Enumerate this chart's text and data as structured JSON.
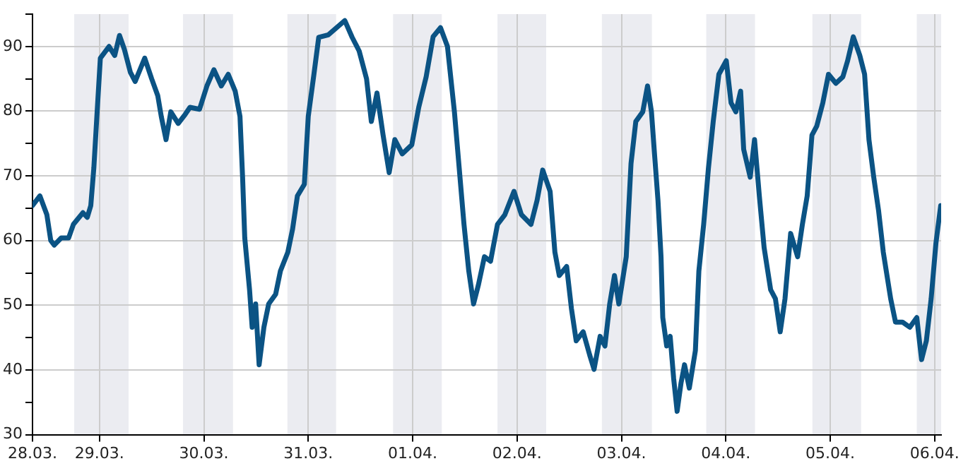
{
  "chart_data": {
    "type": "line",
    "marker": "none",
    "grid": true,
    "color": "#0b5384",
    "x": [
      "--03-28T08:36",
      "--03-28T10:18",
      "--03-28T11:54",
      "--03-28T12:48",
      "--03-28T13:36",
      "--03-28T15:12",
      "--03-28T16:54",
      "--03-28T18:00",
      "--03-28T20:12",
      "--03-28T21:12",
      "--03-28T22:00",
      "--03-28T22:42",
      "--03-28T23:24",
      "--03-29T00:12",
      "--03-29T02:12",
      "--03-29T03:30",
      "--03-29T04:36",
      "--03-29T05:42",
      "--03-29T07:06",
      "--03-29T08:12",
      "--03-29T10:24",
      "--03-29T12:00",
      "--03-29T13:24",
      "--03-29T14:12",
      "--03-29T15:18",
      "--03-29T16:24",
      "--03-29T18:06",
      "--03-29T19:42",
      "--03-29T20:48",
      "--03-29T23:00",
      "--03-30T00:42",
      "--03-30T02:18",
      "--03-30T04:00",
      "--03-30T05:36",
      "--03-30T07:12",
      "--03-30T08:18",
      "--03-30T08:54",
      "--03-30T09:24",
      "--03-30T10:30",
      "--03-30T11:06",
      "--03-30T11:54",
      "--03-30T12:42",
      "--03-30T13:48",
      "--03-30T14:54",
      "--03-30T16:30",
      "--03-30T17:36",
      "--03-30T19:18",
      "--03-30T20:24",
      "--03-30T21:30",
      "--03-30T23:06",
      "--03-31T00:00",
      "--03-31T01:18",
      "--03-31T02:24",
      "--03-31T04:36",
      "--03-31T08:24",
      "--03-31T10:06",
      "--03-31T11:42",
      "--03-31T13:24",
      "--03-31T14:30",
      "--03-31T15:48",
      "--03-31T17:12",
      "--03-31T18:36",
      "--03-31T19:54",
      "--03-31T21:36",
      "--03-31T23:48",
      "--04-01T01:24",
      "--04-01T03:06",
      "--04-01T04:42",
      "--04-01T06:24",
      "--04-01T08:00",
      "--04-01T09:36",
      "--04-01T10:42",
      "--04-01T11:48",
      "--04-01T12:54",
      "--04-01T14:00",
      "--04-01T15:06",
      "--04-01T16:30",
      "--04-01T17:54",
      "--04-01T19:30",
      "--04-01T21:12",
      "--04-01T23:18",
      "--04-02T01:00",
      "--04-02T03:12",
      "--04-02T04:36",
      "--04-02T05:54",
      "--04-02T07:36",
      "--04-02T08:42",
      "--04-02T09:42",
      "--04-02T11:24",
      "--04-02T12:30",
      "--04-02T13:36",
      "--04-02T15:12",
      "--04-02T16:42",
      "--04-02T17:42",
      "--04-02T19:06",
      "--04-02T20:12",
      "--04-02T21:18",
      "--04-02T22:24",
      "--04-02T23:24",
      "--04-03T01:06",
      "--04-03T02:12",
      "--04-03T03:18",
      "--04-03T04:54",
      "--04-03T06:00",
      "--04-03T06:54",
      "--04-03T07:36",
      "--04-03T08:24",
      "--04-03T09:06",
      "--04-03T09:30",
      "--04-03T10:24",
      "--04-03T11:12",
      "--04-03T12:00",
      "--04-03T12:48",
      "--04-03T13:42",
      "--04-03T14:30",
      "--04-03T15:36",
      "--04-03T17:00",
      "--04-03T17:48",
      "--04-03T18:54",
      "--04-03T20:00",
      "--04-03T21:06",
      "--04-03T22:24",
      "--04-04T00:06",
      "--04-04T01:12",
      "--04-04T02:18",
      "--04-04T03:24",
      "--04-04T04:06",
      "--04-04T05:36",
      "--04-04T06:36",
      "--04-04T07:42",
      "--04-04T08:48",
      "--04-04T10:18",
      "--04-04T11:24",
      "--04-04T12:30",
      "--04-04T13:36",
      "--04-04T14:54",
      "--04-04T16:30",
      "--04-04T17:36",
      "--04-04T18:42",
      "--04-04T19:48",
      "--04-04T20:54",
      "--04-04T22:18",
      "--04-04T23:36",
      "--04-05T01:18",
      "--04-05T02:54",
      "--04-05T04:00",
      "--04-05T05:18",
      "--04-05T06:48",
      "--04-05T07:54",
      "--04-05T08:54",
      "--04-05T10:00",
      "--04-05T11:06",
      "--04-05T12:12",
      "--04-05T13:54",
      "--04-05T15:00",
      "--04-05T16:36",
      "--04-05T18:18",
      "--04-05T19:54",
      "--04-05T21:00",
      "--04-05T22:06",
      "--04-05T23:12",
      "--04-06T00:18",
      "--04-06T01:24"
    ],
    "values": [
      65.4,
      66.9,
      64,
      60,
      59.3,
      60.4,
      60.4,
      62.5,
      64.3,
      63.6,
      65.4,
      71.2,
      79.2,
      88.2,
      90,
      88.6,
      91.7,
      89.6,
      86,
      84.6,
      88.2,
      85,
      82.4,
      79.2,
      75.6,
      79.9,
      78.1,
      79.5,
      80.6,
      80.3,
      83.9,
      86.4,
      83.9,
      85.7,
      83.1,
      79.2,
      69.8,
      60.4,
      52.4,
      46.6,
      50.2,
      40.8,
      46.6,
      50.2,
      51.7,
      55.3,
      58.2,
      61.8,
      66.9,
      68.7,
      79.2,
      85.7,
      91.4,
      91.8,
      94,
      91.4,
      89.3,
      85,
      78.4,
      82.8,
      76.3,
      70.5,
      75.6,
      73.4,
      74.8,
      80.6,
      85.3,
      91.5,
      92.9,
      90,
      79.9,
      71.2,
      62.5,
      55.3,
      50.2,
      53.1,
      57.5,
      56.8,
      62.5,
      64,
      67.6,
      64,
      62.5,
      66.2,
      70.9,
      67.6,
      58.2,
      54.6,
      56,
      49.5,
      44.5,
      45.9,
      42.3,
      40.1,
      45.2,
      43.7,
      50.2,
      54.6,
      50.2,
      57.5,
      71.9,
      78.4,
      79.9,
      83.9,
      79.9,
      73.4,
      66.2,
      57.5,
      48.1,
      43.7,
      45.2,
      38.7,
      33.6,
      38,
      40.8,
      37.2,
      43,
      55.3,
      62.5,
      71.2,
      78.4,
      85.7,
      87.8,
      81.3,
      79.9,
      83.1,
      74.1,
      69.8,
      75.6,
      66.9,
      58.9,
      52.4,
      51,
      45.9,
      51,
      61.1,
      57.5,
      62.5,
      66.9,
      76.3,
      77.7,
      81.3,
      85.7,
      84.3,
      85.3,
      87.8,
      91.5,
      88.6,
      85.7,
      75.6,
      69.8,
      64.7,
      58.2,
      51,
      47.4,
      47.4,
      46.6,
      48.1,
      41.6,
      44.5,
      51,
      59.6,
      65.4
    ],
    "xlim": [
      "--03-28T08:36",
      "--04-06T01:30"
    ],
    "xticks": [
      {
        "value": "--03-28T08:36",
        "label": "28.03."
      },
      {
        "value": "--03-29",
        "label": "29.03."
      },
      {
        "value": "--03-30",
        "label": "30.03."
      },
      {
        "value": "--03-31",
        "label": "31.03."
      },
      {
        "value": "--04-01",
        "label": "01.04."
      },
      {
        "value": "--04-02",
        "label": "02.04."
      },
      {
        "value": "--04-03",
        "label": "03.04."
      },
      {
        "value": "--04-04",
        "label": "04.04."
      },
      {
        "value": "--04-05",
        "label": "05.04."
      },
      {
        "value": "--04-06",
        "label": "06.04."
      }
    ],
    "ylim": [
      30,
      95
    ],
    "yticks": [
      30,
      {
        "value": 35,
        "label": null
      },
      40,
      {
        "value": 45,
        "label": null
      },
      50,
      {
        "value": 55,
        "label": null
      },
      60,
      {
        "value": 65,
        "label": null
      },
      70,
      {
        "value": 75,
        "label": null
      },
      80,
      {
        "value": 85,
        "label": null
      },
      90,
      {
        "value": 95,
        "label": null
      }
    ],
    "bands": [
      {
        "axis": "x",
        "from": "--03-28T18:12",
        "to": "--03-29T06:42",
        "color": "#ebecf1"
      },
      {
        "axis": "x",
        "from": "--03-29T19:12",
        "to": "--03-30T06:42",
        "color": "#ebecf1"
      },
      {
        "axis": "x",
        "from": "--03-30T19:12",
        "to": "--03-31T06:24",
        "color": "#ebecf1"
      },
      {
        "axis": "x",
        "from": "--03-31T19:30",
        "to": "--04-01T06:42",
        "color": "#ebecf1"
      },
      {
        "axis": "x",
        "from": "--04-01T19:30",
        "to": "--04-02T06:42",
        "color": "#ebecf1"
      },
      {
        "axis": "x",
        "from": "--04-02T19:30",
        "to": "--04-03T07:00",
        "color": "#ebecf1"
      },
      {
        "axis": "x",
        "from": "--04-03T19:30",
        "to": "--04-04T06:42",
        "color": "#ebecf1"
      },
      {
        "axis": "x",
        "from": "--04-04T19:54",
        "to": "--04-05T07:06",
        "color": "#ebecf1"
      },
      {
        "axis": "x",
        "from": "--04-05T19:54",
        "to": "--04-06T01:30",
        "color": "#ebecf1"
      }
    ]
  }
}
